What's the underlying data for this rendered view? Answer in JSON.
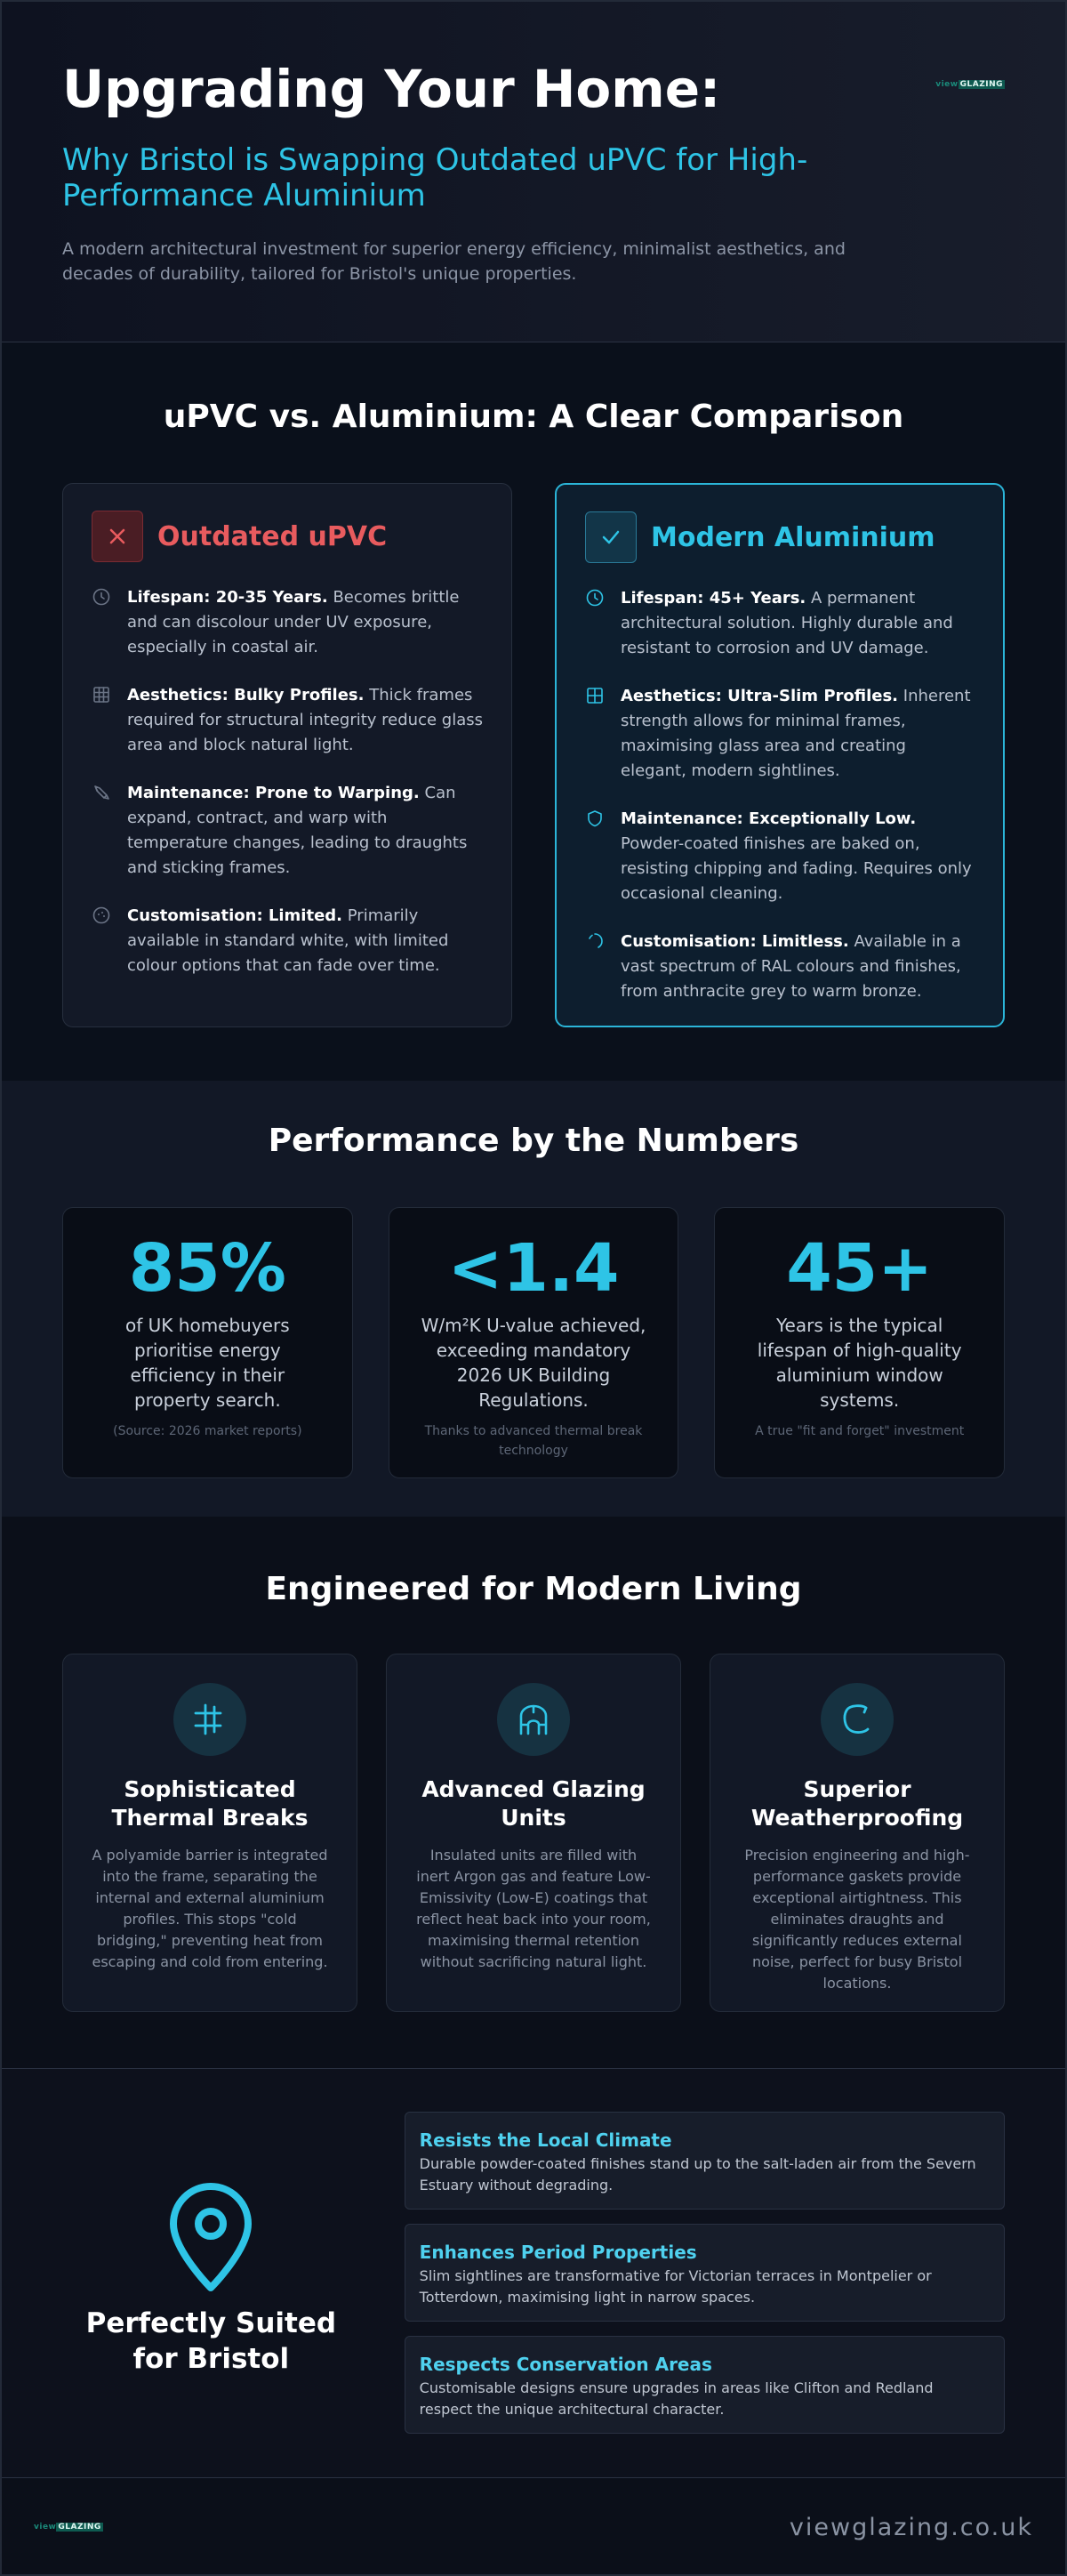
{
  "header": {
    "title": "Upgrading Your Home:",
    "subtitle": "Why Bristol is Swapping Outdated uPVC for High-Performance Aluminium",
    "description": "A modern architectural investment for superior energy efficiency, minimalist aesthetics, and decades of durability, tailored for Bristol's unique properties.",
    "logo": {
      "prefix": "view",
      "suffix": "GLAZING"
    }
  },
  "comparison": {
    "title": "uPVC vs. Aluminium: A Clear Comparison",
    "upvc": {
      "title": "Outdated uPVC",
      "items": [
        {
          "lead": "Lifespan: 20-35 Years.",
          "text": "Becomes brittle and can discolour under UV exposure, especially in coastal air."
        },
        {
          "lead": "Aesthetics: Bulky Profiles.",
          "text": "Thick frames required for structural integrity reduce glass area and block natural light."
        },
        {
          "lead": "Maintenance: Prone to Warping.",
          "text": "Can expand, contract, and warp with temperature changes, leading to draughts and sticking frames."
        },
        {
          "lead": "Customisation: Limited.",
          "text": "Primarily available in standard white, with limited colour options that can fade over time."
        }
      ]
    },
    "aluminium": {
      "title": "Modern Aluminium",
      "items": [
        {
          "lead": "Lifespan: 45+ Years.",
          "text": "A permanent architectural solution. Highly durable and resistant to corrosion and UV damage."
        },
        {
          "lead": "Aesthetics: Ultra-Slim Profiles.",
          "text": "Inherent strength allows for minimal frames, maximising glass area and creating elegant, modern sightlines."
        },
        {
          "lead": "Maintenance: Exceptionally Low.",
          "text": "Powder-coated finishes are baked on, resisting chipping and fading. Requires only occasional cleaning."
        },
        {
          "lead": "Customisation: Limitless.",
          "text": "Available in a vast spectrum of RAL colours and finishes, from anthracite grey to warm bronze."
        }
      ]
    }
  },
  "numbers": {
    "title": "Performance by the Numbers",
    "stats": [
      {
        "value": "85%",
        "label": "of UK homebuyers prioritise energy efficiency in their property search.",
        "note": "(Source: 2026 market reports)"
      },
      {
        "value": "<1.4",
        "label": "W/m²K U-value achieved, exceeding mandatory 2026 UK Building Regulations.",
        "note": "Thanks to advanced thermal break technology"
      },
      {
        "value": "45+",
        "label": "Years is the typical lifespan of high-quality aluminium window systems.",
        "note": "A true \"fit and forget\" investment"
      }
    ]
  },
  "engineered": {
    "title": "Engineered for Modern Living",
    "cards": [
      {
        "title": "Sophisticated Thermal Breaks",
        "text": "A polyamide barrier is integrated into the frame, separating the internal and external aluminium profiles. This stops \"cold bridging,\" preventing heat from escaping and cold from entering."
      },
      {
        "title": "Advanced Glazing Units",
        "text": "Insulated units are filled with inert Argon gas and feature Low-Emissivity (Low-E) coatings that reflect heat back into your room, maximising thermal retention without sacrificing natural light."
      },
      {
        "title": "Superior Weatherproofing",
        "text": "Precision engineering and high-performance gaskets provide exceptional airtightness. This eliminates draughts and significantly reduces external noise, perfect for busy Bristol locations."
      }
    ]
  },
  "bristol": {
    "title": "Perfectly Suited for Bristol",
    "items": [
      {
        "title": "Resists the Local Climate",
        "text": "Durable powder-coated finishes stand up to the salt-laden air from the Severn Estuary without degrading."
      },
      {
        "title": "Enhances Period Properties",
        "text": "Slim sightlines are transformative for Victorian terraces in Montpelier or Totterdown, maximising light in narrow spaces."
      },
      {
        "title": "Respects Conservation Areas",
        "text": "Customisable designs ensure upgrades in areas like Clifton and Redland respect the unique architectural character."
      }
    ]
  },
  "footer": {
    "logo": {
      "prefix": "view",
      "suffix": "GLAZING"
    },
    "url": "viewglazing.co.uk"
  }
}
